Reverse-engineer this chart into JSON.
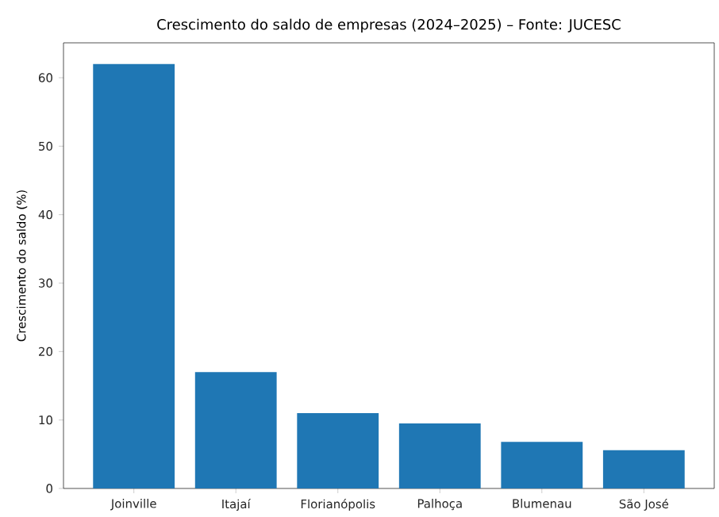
{
  "chart_data": {
    "type": "bar",
    "title": "Crescimento do saldo de empresas (2024–2025) – Fonte: JUCESC",
    "ylabel": "Crescimento do saldo (%)",
    "categories": [
      "Joinville",
      "Itajaí",
      "Florianópolis",
      "Palhoça",
      "Blumenau",
      "São José"
    ],
    "values": [
      62,
      17,
      11,
      9.5,
      6.8,
      5.6
    ],
    "color": "#1f77b4",
    "ylim": [
      0,
      65.1
    ],
    "yticks": [
      0,
      10,
      20,
      30,
      40,
      50,
      60
    ],
    "grid": false
  }
}
